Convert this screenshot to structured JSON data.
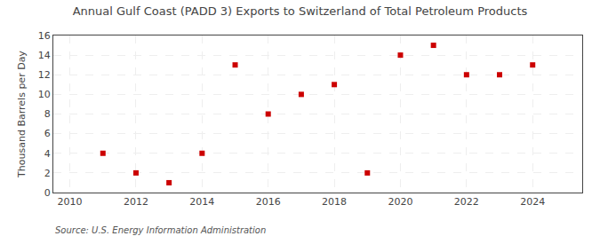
{
  "chart_data": {
    "type": "scatter",
    "title": "Annual Gulf Coast (PADD 3) Exports to Switzerland of Total Petroleum Products",
    "ylabel": "Thousand Barrels per Day",
    "annotations": [
      "Source: U.S. Energy Information Administration"
    ],
    "x": [
      2011,
      2012,
      2013,
      2014,
      2015,
      2016,
      2017,
      2018,
      2019,
      2020,
      2021,
      2022,
      2023,
      2024
    ],
    "values": [
      4,
      2,
      1,
      4,
      13,
      8,
      10,
      11,
      2,
      14,
      15,
      12,
      12,
      13
    ],
    "color": "#cc0000",
    "marker": "square",
    "xlim": [
      2009.5,
      2025.5
    ],
    "ylim": [
      0,
      16
    ],
    "xticks": [
      2010,
      2012,
      2014,
      2016,
      2018,
      2020,
      2022,
      2024
    ],
    "yticks": [
      0,
      2,
      4,
      6,
      8,
      10,
      12,
      14,
      16
    ],
    "grid": true
  }
}
